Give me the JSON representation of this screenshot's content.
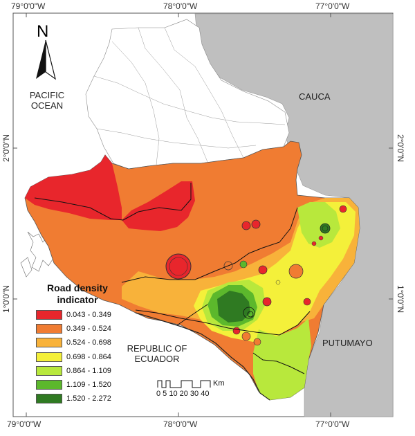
{
  "coordinates": {
    "top": [
      "79°0'0\"W",
      "78°0'0\"W",
      "77°0'0\"W"
    ],
    "bottom": [
      "79°0'0\"W",
      "78°0'0\"W",
      "77°0'0\"W"
    ],
    "left": [
      "2°0'0\"N",
      "1°0'0\"N"
    ],
    "right": [
      "2°0'0\"N",
      "1°0'0\"N"
    ]
  },
  "places": {
    "pacific_line1": "PACIFIC",
    "pacific_line2": "OCEAN",
    "cauca": "CAUCA",
    "putumayo": "PUTUMAYO",
    "ecuador_line1": "REPUBLIC OF",
    "ecuador_line2": "ECUADOR"
  },
  "north_arrow": {
    "label": "N"
  },
  "legend": {
    "title_line1": "Road density",
    "title_line2": "indicator",
    "classes": [
      {
        "label": "0.043 - 0.349",
        "color": "#e8262c"
      },
      {
        "label": "0.349 - 0.524",
        "color": "#f07c32"
      },
      {
        "label": "0.524 - 0.698",
        "color": "#f8b23a"
      },
      {
        "label": "0.698 - 0.864",
        "color": "#f4f03a"
      },
      {
        "label": "0.864 - 1.109",
        "color": "#b8e83c"
      },
      {
        "label": "1.109 - 1.520",
        "color": "#5cb82c"
      },
      {
        "label": "1.520 - 2.272",
        "color": "#2f7a22"
      }
    ]
  },
  "scale_bar": {
    "ticks": "0 5 10  20  30  40",
    "unit": "Km"
  },
  "colors": {
    "neighbour_gray": "#bfbfbf",
    "frame": "#444444",
    "background": "#ffffff"
  }
}
